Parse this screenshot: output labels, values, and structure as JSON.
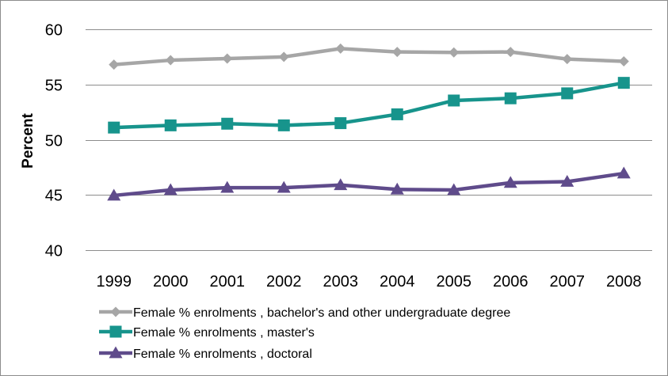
{
  "chart_data": {
    "type": "line",
    "title": "",
    "xlabel": "",
    "ylabel": "Percent",
    "ylim": [
      40,
      60
    ],
    "yticks": [
      40,
      45,
      50,
      55,
      60
    ],
    "grid": true,
    "legend_position": "bottom",
    "x": [
      "1999",
      "2000",
      "2001",
      "2002",
      "2003",
      "2004",
      "2005",
      "2006",
      "2007",
      "2008"
    ],
    "series": [
      {
        "name": "Female % enrolments , bachelor's and other undergraduate degree",
        "color": "#a6a6a6",
        "marker": "diamond",
        "values": [
          56.8,
          57.2,
          57.35,
          57.5,
          58.25,
          57.95,
          57.9,
          57.95,
          57.3,
          57.1
        ]
      },
      {
        "name": "Female % enrolments , master's",
        "color": "#17948c",
        "marker": "square",
        "values": [
          51.1,
          51.3,
          51.45,
          51.3,
          51.5,
          52.3,
          53.55,
          53.75,
          54.2,
          55.15
        ]
      },
      {
        "name": "Female % enrolments , doctoral",
        "color": "#5f4b8b",
        "marker": "triangle",
        "values": [
          44.95,
          45.45,
          45.65,
          45.65,
          45.9,
          45.5,
          45.45,
          46.1,
          46.2,
          46.95
        ]
      }
    ]
  }
}
